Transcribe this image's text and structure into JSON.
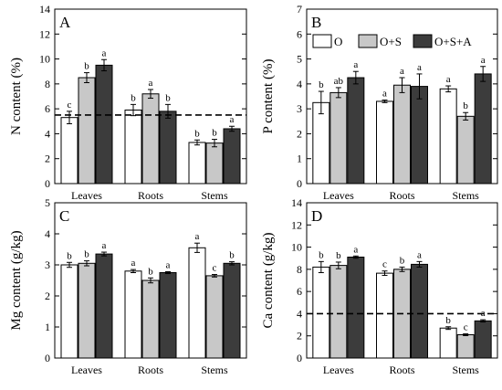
{
  "colors": {
    "O": "#ffffff",
    "O+S": "#c8c8c8",
    "O+S+A": "#3c3c3c",
    "axis": "#000000"
  },
  "legend": {
    "position": "top-right of panel B",
    "entries": [
      "O",
      "O+S",
      "O+S+A"
    ]
  },
  "chart_data": [
    {
      "type": "bar",
      "panel_label": "A",
      "ylabel": "N content (%)",
      "ylim": [
        0,
        14
      ],
      "yticks": [
        "0",
        "2",
        "4",
        "6",
        "8",
        "10",
        "12",
        "14"
      ],
      "categories": [
        "Leaves",
        "Roots",
        "Stems"
      ],
      "series": [
        {
          "name": "O",
          "values": [
            5.3,
            5.9,
            3.3
          ],
          "errors": [
            0.5,
            0.45,
            0.2
          ],
          "letters": [
            "c",
            "b",
            "b"
          ]
        },
        {
          "name": "O+S",
          "values": [
            8.5,
            7.2,
            3.25
          ],
          "errors": [
            0.4,
            0.35,
            0.3
          ],
          "letters": [
            "b",
            "a",
            "b"
          ]
        },
        {
          "name": "O+S+A",
          "values": [
            9.5,
            5.8,
            4.4
          ],
          "errors": [
            0.45,
            0.55,
            0.2
          ],
          "letters": [
            "a",
            "b",
            "a"
          ]
        }
      ],
      "reference_line": 5.5
    },
    {
      "type": "bar",
      "panel_label": "B",
      "ylabel": "P content (%)",
      "ylim": [
        0,
        7
      ],
      "yticks": [
        "0",
        "1",
        "2",
        "3",
        "4",
        "5",
        "6",
        "7"
      ],
      "categories": [
        "Leaves",
        "Roots",
        "Stems"
      ],
      "series": [
        {
          "name": "O",
          "values": [
            3.25,
            3.3,
            3.8
          ],
          "errors": [
            0.45,
            0.05,
            0.12
          ],
          "letters": [
            "b",
            "a",
            "a"
          ]
        },
        {
          "name": "O+S",
          "values": [
            3.65,
            3.95,
            2.7
          ],
          "errors": [
            0.2,
            0.3,
            0.15
          ],
          "letters": [
            "ab",
            "a",
            "b"
          ]
        },
        {
          "name": "O+S+A",
          "values": [
            4.25,
            3.9,
            4.4
          ],
          "errors": [
            0.25,
            0.5,
            0.3
          ],
          "letters": [
            "a",
            "a",
            "a"
          ]
        }
      ]
    },
    {
      "type": "bar",
      "panel_label": "C",
      "ylabel": "Mg content (g/kg)",
      "ylim": [
        0,
        5
      ],
      "yticks": [
        "0",
        "1",
        "2",
        "3",
        "4",
        "5"
      ],
      "categories": [
        "Leaves",
        "Roots",
        "Stems"
      ],
      "series": [
        {
          "name": "O",
          "values": [
            3.0,
            2.8,
            3.55
          ],
          "errors": [
            0.08,
            0.05,
            0.15
          ],
          "letters": [
            "b",
            "a",
            "a"
          ]
        },
        {
          "name": "O+S",
          "values": [
            3.05,
            2.5,
            2.65
          ],
          "errors": [
            0.08,
            0.08,
            0.04
          ],
          "letters": [
            "b",
            "b",
            "c"
          ]
        },
        {
          "name": "O+S+A",
          "values": [
            3.35,
            2.75,
            3.05
          ],
          "errors": [
            0.06,
            0.03,
            0.05
          ],
          "letters": [
            "a",
            "a",
            "b"
          ]
        }
      ]
    },
    {
      "type": "bar",
      "panel_label": "D",
      "ylabel": "Ca content (g/kg)",
      "ylim": [
        0,
        14
      ],
      "yticks": [
        "0",
        "2",
        "4",
        "6",
        "8",
        "10",
        "12",
        "14"
      ],
      "categories": [
        "Leaves",
        "Roots",
        "Stems"
      ],
      "series": [
        {
          "name": "O",
          "values": [
            8.2,
            7.65,
            2.7
          ],
          "errors": [
            0.5,
            0.2,
            0.12
          ],
          "letters": [
            "b",
            "c",
            "b"
          ]
        },
        {
          "name": "O+S",
          "values": [
            8.35,
            8.0,
            2.1
          ],
          "errors": [
            0.3,
            0.2,
            0.08
          ],
          "letters": [
            "b",
            "b",
            "c"
          ]
        },
        {
          "name": "O+S+A",
          "values": [
            9.1,
            8.45,
            3.35
          ],
          "errors": [
            0.1,
            0.25,
            0.1
          ],
          "letters": [
            "a",
            "a",
            "a"
          ]
        }
      ],
      "reference_line": 4.0
    }
  ]
}
